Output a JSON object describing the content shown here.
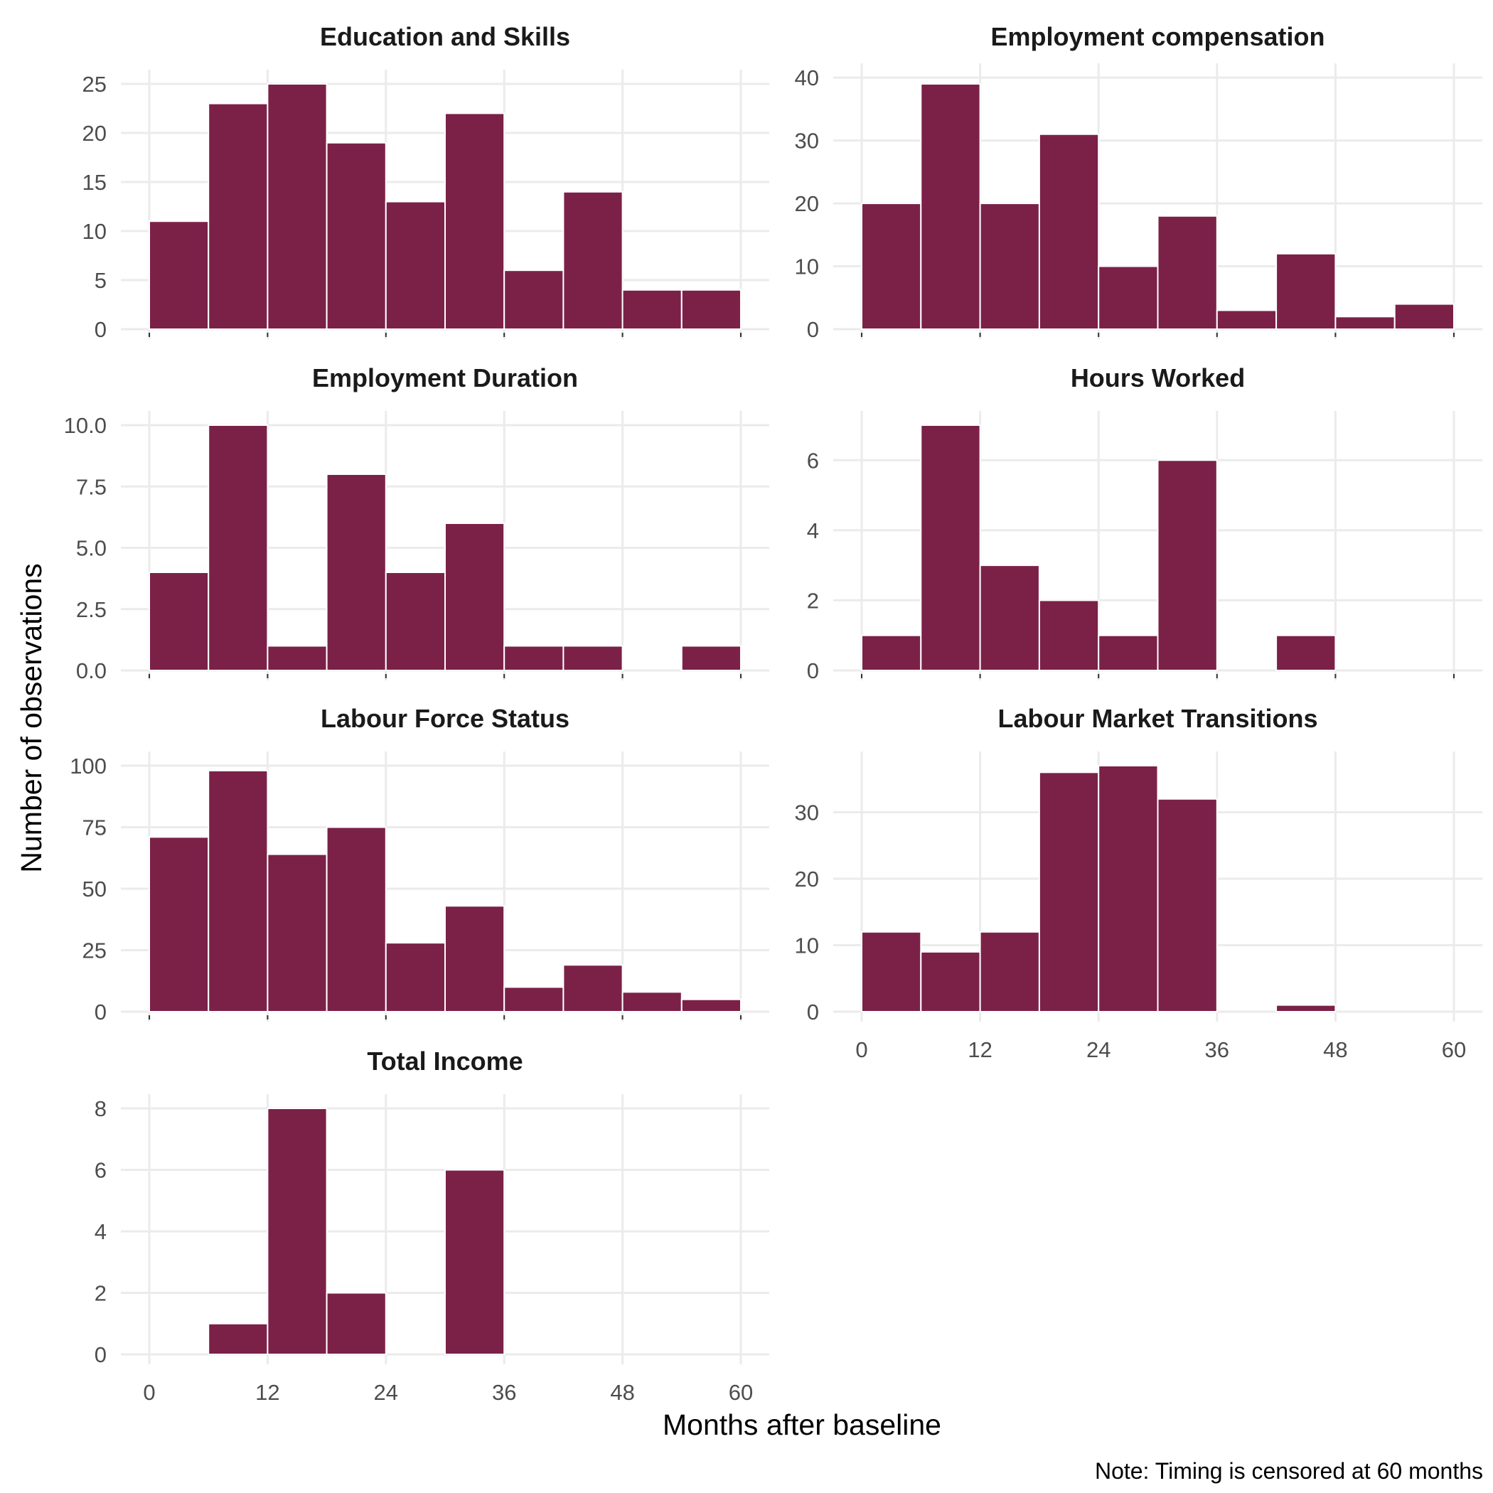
{
  "chart_data": {
    "type": "bar",
    "subtype": "histogram-facets",
    "xlabel": "Months after baseline",
    "ylabel": "Number of observations",
    "caption": "Note: Timing is censored at 60 months",
    "bar_color": "#7b2148",
    "bin_width_months": 6,
    "xlim": [
      0,
      60
    ],
    "x_ticks": [
      0,
      12,
      24,
      36,
      48,
      60
    ],
    "grid": true,
    "panels": [
      {
        "title": "Education and Skills",
        "bins": [
          0,
          6,
          12,
          18,
          24,
          30,
          36,
          42,
          48,
          54,
          60
        ],
        "counts": [
          11,
          23,
          25,
          19,
          13,
          22,
          6,
          14,
          4,
          4
        ],
        "ylim": [
          0,
          25
        ],
        "y_ticks": [
          0,
          5,
          10,
          15,
          20,
          25
        ],
        "y_tick_labels": [
          "0",
          "5",
          "10",
          "15",
          "20",
          "25"
        ]
      },
      {
        "title": "Employment compensation",
        "bins": [
          0,
          6,
          12,
          18,
          24,
          30,
          36,
          42,
          48,
          54,
          60
        ],
        "counts": [
          20,
          39,
          20,
          31,
          10,
          18,
          3,
          12,
          2,
          4
        ],
        "ylim": [
          0,
          39
        ],
        "y_ticks": [
          0,
          10,
          20,
          30,
          40
        ],
        "y_tick_labels": [
          "0",
          "10",
          "20",
          "30",
          "40"
        ]
      },
      {
        "title": "Employment Duration",
        "bins": [
          0,
          6,
          12,
          18,
          24,
          30,
          36,
          42,
          48,
          54,
          60
        ],
        "counts": [
          4,
          10,
          1,
          8,
          4,
          6,
          1,
          1,
          0,
          1
        ],
        "ylim": [
          0,
          10
        ],
        "y_ticks": [
          0,
          2.5,
          5,
          7.5,
          10
        ],
        "y_tick_labels": [
          "0.0",
          "2.5",
          "5.0",
          "7.5",
          "10.0"
        ]
      },
      {
        "title": "Hours Worked",
        "bins": [
          0,
          6,
          12,
          18,
          24,
          30,
          36,
          42,
          48,
          54,
          60
        ],
        "counts": [
          1,
          7,
          3,
          2,
          1,
          6,
          0,
          1,
          0,
          0
        ],
        "ylim": [
          0,
          7
        ],
        "y_ticks": [
          0,
          2,
          4,
          6
        ],
        "y_tick_labels": [
          "0",
          "2",
          "4",
          "6"
        ]
      },
      {
        "title": "Labour Force Status",
        "bins": [
          0,
          6,
          12,
          18,
          24,
          30,
          36,
          42,
          48,
          54,
          60
        ],
        "counts": [
          71,
          98,
          64,
          75,
          28,
          43,
          10,
          19,
          8,
          5
        ],
        "ylim": [
          0,
          100
        ],
        "y_ticks": [
          0,
          25,
          50,
          75,
          100
        ],
        "y_tick_labels": [
          "0",
          "25",
          "50",
          "75",
          "100"
        ]
      },
      {
        "title": "Labour Market Transitions",
        "bins": [
          0,
          6,
          12,
          18,
          24,
          30,
          36,
          42,
          48,
          54,
          60
        ],
        "counts": [
          12,
          9,
          12,
          36,
          37,
          32,
          0,
          1,
          0,
          0
        ],
        "ylim": [
          0,
          37
        ],
        "y_ticks": [
          0,
          10,
          20,
          30
        ],
        "y_tick_labels": [
          "0",
          "10",
          "20",
          "30"
        ]
      },
      {
        "title": "Total Income",
        "bins": [
          0,
          6,
          12,
          18,
          24,
          30,
          36,
          42,
          48,
          54,
          60
        ],
        "counts": [
          0,
          1,
          8,
          2,
          0,
          6,
          0,
          0,
          0,
          0
        ],
        "ylim": [
          0,
          8
        ],
        "y_ticks": [
          0,
          2,
          4,
          6,
          8
        ],
        "y_tick_labels": [
          "0",
          "2",
          "4",
          "6",
          "8"
        ]
      }
    ]
  }
}
